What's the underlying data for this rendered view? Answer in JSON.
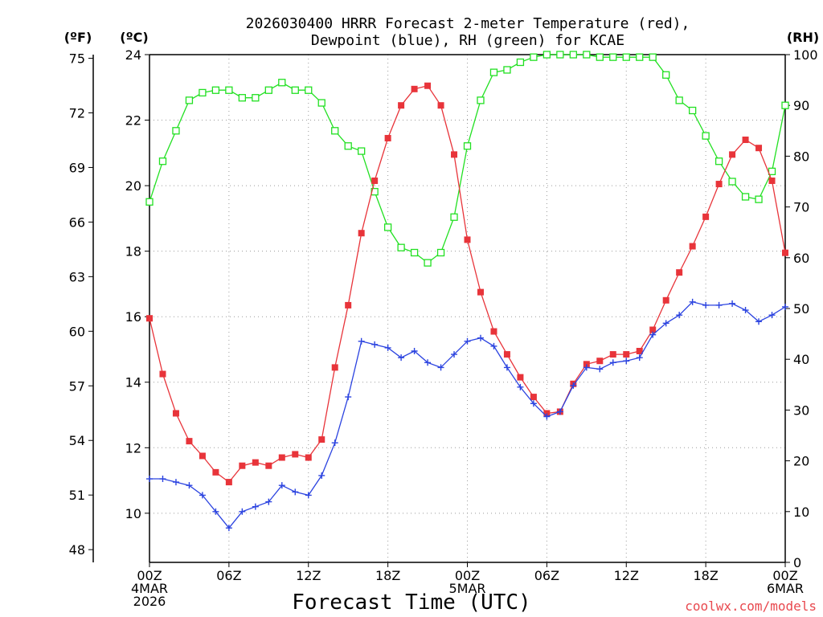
{
  "chart_data": {
    "type": "line",
    "title_line1": "2026030400 HRRR Forecast 2-meter Temperature (red),",
    "title_line2": "Dewpoint (blue), RH (green) for KCAE",
    "xlabel": "Forecast Time (UTC)",
    "credit": "coolwx.com/models",
    "unit_f": "(ºF)",
    "unit_c": "(ºC)",
    "unit_rh": "(RH)",
    "x_ticks": [
      {
        "h": 0,
        "l1": "00Z",
        "l2": "4MAR",
        "l3": "2026"
      },
      {
        "h": 6,
        "l1": "06Z"
      },
      {
        "h": 12,
        "l1": "12Z"
      },
      {
        "h": 18,
        "l1": "18Z"
      },
      {
        "h": 24,
        "l1": "00Z",
        "l2": "5MAR"
      },
      {
        "h": 30,
        "l1": "06Z"
      },
      {
        "h": 36,
        "l1": "12Z"
      },
      {
        "h": 42,
        "l1": "18Z"
      },
      {
        "h": 48,
        "l1": "00Z",
        "l2": "6MAR"
      }
    ],
    "xlim": [
      0,
      48
    ],
    "c_ticks": [
      "10",
      "12",
      "14",
      "16",
      "18",
      "20",
      "22",
      "24"
    ],
    "c_range": [
      8.5,
      24
    ],
    "f_ticks": [
      "48",
      "51",
      "54",
      "57",
      "60",
      "63",
      "66",
      "69",
      "72",
      "75"
    ],
    "rh_ticks": [
      "0",
      "10",
      "20",
      "30",
      "40",
      "50",
      "60",
      "70",
      "80",
      "90",
      "100"
    ],
    "rh_range": [
      0,
      100
    ],
    "grid": true,
    "series": [
      {
        "name": "Temperature",
        "color": "#e8343a",
        "marker": "filled-square",
        "values": [
          15.95,
          14.25,
          13.05,
          12.2,
          11.75,
          11.25,
          10.95,
          11.45,
          11.55,
          11.45,
          11.7,
          11.8,
          11.7,
          12.25,
          14.45,
          16.35,
          18.55,
          20.15,
          21.45,
          22.45,
          22.95,
          23.05,
          22.45,
          20.95,
          18.35,
          16.75,
          15.55,
          14.85,
          14.15,
          13.55,
          13.05,
          13.1,
          13.95,
          14.55,
          14.65,
          14.85,
          14.85,
          14.95,
          15.6,
          16.5,
          17.35,
          18.15,
          19.05,
          20.05,
          20.95,
          21.4,
          21.15,
          20.15,
          17.95
        ]
      },
      {
        "name": "Dewpoint",
        "color": "#2b43e0",
        "marker": "plus",
        "values": [
          11.05,
          11.05,
          10.95,
          10.85,
          10.55,
          10.05,
          9.55,
          10.05,
          10.2,
          10.35,
          10.85,
          10.65,
          10.55,
          11.15,
          12.15,
          13.55,
          15.25,
          15.15,
          15.05,
          14.75,
          14.95,
          14.6,
          14.45,
          14.85,
          15.25,
          15.35,
          15.1,
          14.45,
          13.85,
          13.35,
          12.95,
          13.1,
          13.9,
          14.45,
          14.4,
          14.6,
          14.65,
          14.75,
          15.45,
          15.8,
          16.05,
          16.45,
          16.35,
          16.35,
          16.4,
          16.2,
          15.85,
          16.05,
          16.3
        ]
      },
      {
        "name": "RH",
        "color": "#22e022",
        "marker": "open-square",
        "values": [
          71,
          79,
          85,
          91,
          92.5,
          93,
          93,
          91.5,
          91.5,
          93,
          94.5,
          93,
          93,
          90.5,
          85,
          82,
          81,
          73,
          66,
          62,
          61,
          59,
          61,
          68,
          82,
          91,
          96.5,
          97,
          98.5,
          99.5,
          100,
          100,
          100,
          100,
          99.5,
          99.5,
          99.5,
          99.5,
          99.5,
          96,
          91,
          89,
          84,
          79,
          75,
          72,
          71.5,
          77,
          90
        ]
      }
    ]
  }
}
